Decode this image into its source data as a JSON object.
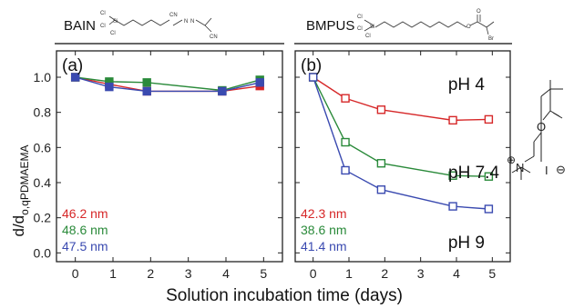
{
  "chart_data": [
    {
      "panel_label": "(a)",
      "title": "BAIN",
      "type": "line",
      "xlabel": "Solution incubation time  (days)",
      "ylabel": "d/d",
      "ylabel_sub": "o,qPDMAEMA",
      "xlim": [
        -0.5,
        5.5
      ],
      "ylim": [
        -0.05,
        1.15
      ],
      "xticks": [
        "0",
        "1",
        "2",
        "3",
        "4",
        "5"
      ],
      "yticks": [
        "0.0",
        "0.2",
        "0.4",
        "0.6",
        "0.8",
        "1.0"
      ],
      "series": [
        {
          "color": "#d62728",
          "x": [
            0,
            0.9,
            1.9,
            3.9,
            4.9
          ],
          "values": [
            1.0,
            0.96,
            0.92,
            0.92,
            0.95
          ]
        },
        {
          "color": "#2a8a3a",
          "x": [
            0,
            0.9,
            1.9,
            3.9,
            4.9
          ],
          "values": [
            1.0,
            0.975,
            0.97,
            0.925,
            0.985
          ]
        },
        {
          "color": "#3a4ab0",
          "x": [
            0,
            0.9,
            1.9,
            3.9,
            4.9
          ],
          "values": [
            1.0,
            0.945,
            0.92,
            0.92,
            0.97
          ]
        }
      ],
      "annotations": [
        {
          "text": "46.2 nm",
          "color": "#d62728"
        },
        {
          "text": "48.6 nm",
          "color": "#2a8a3a"
        },
        {
          "text": "47.5 nm",
          "color": "#3a4ab0"
        }
      ]
    },
    {
      "panel_label": "(b)",
      "title": "BMPUS",
      "type": "line",
      "xlim": [
        -0.5,
        5.5
      ],
      "ylim": [
        -0.05,
        1.15
      ],
      "xticks": [
        "0",
        "1",
        "2",
        "3",
        "4",
        "5"
      ],
      "series": [
        {
          "name": "pH 4",
          "color": "#d62728",
          "x": [
            0,
            0.9,
            1.9,
            3.9,
            4.9
          ],
          "values": [
            1.0,
            0.88,
            0.815,
            0.755,
            0.76
          ]
        },
        {
          "name": "pH 7.4",
          "color": "#2a8a3a",
          "x": [
            0,
            0.9,
            1.9,
            3.9,
            4.9
          ],
          "values": [
            1.0,
            0.63,
            0.51,
            0.44,
            0.435
          ]
        },
        {
          "name": "pH 9",
          "color": "#3a4ab0",
          "x": [
            0,
            0.9,
            1.9,
            3.9,
            4.9
          ],
          "values": [
            1.0,
            0.47,
            0.36,
            0.265,
            0.25
          ]
        }
      ],
      "annotations": [
        {
          "text": "42.3 nm",
          "color": "#d62728"
        },
        {
          "text": "38.6 nm",
          "color": "#2a8a3a"
        },
        {
          "text": "41.4 nm",
          "color": "#3a4ab0"
        }
      ]
    }
  ],
  "structures": {
    "bain_cn": "CN",
    "bain_n": "N",
    "bain_si": "Si",
    "bain_cl": "Cl",
    "bmpus_si": "Si",
    "bmpus_cl": "Cl",
    "bmpus_o": "O",
    "bmpus_br": "Br",
    "monomer_o": "O",
    "monomer_n": "N",
    "monomer_plus": "⊕",
    "monomer_iodide": "I",
    "monomer_minus": "⊖"
  }
}
